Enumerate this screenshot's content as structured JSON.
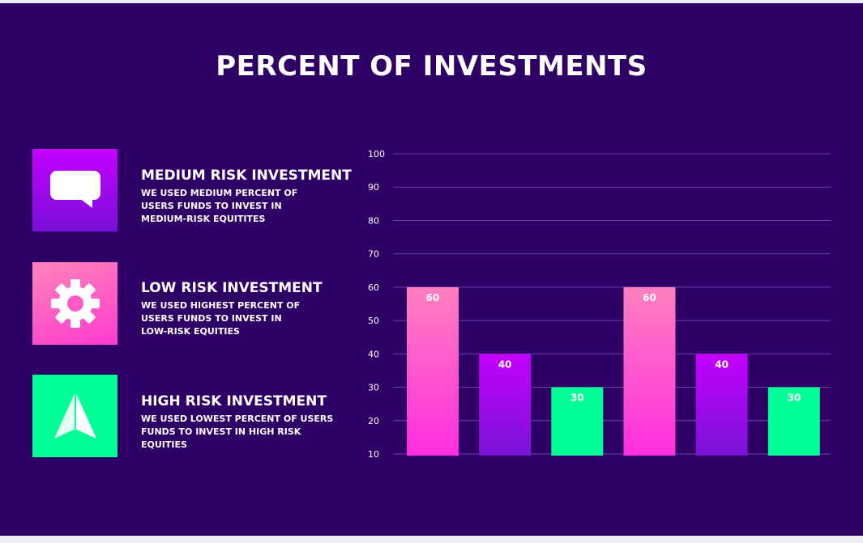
{
  "title": "PERCENT OF INVESTMENTS",
  "legend": [
    {
      "title": "MEDIUM RISK INVESTMENT",
      "lines": [
        "WE USED MEDIUM PERCENT OF",
        "USERS FUNDS TO INVEST IN",
        "MEDIUM-RISK EQUITITES"
      ],
      "icon": "speech-bubble-icon",
      "color": "#c300ff"
    },
    {
      "title": "LOW RISK INVESTMENT",
      "lines": [
        "WE USED HIGHEST PERCENT OF",
        "USERS FUNDS TO INVEST IN",
        "LOW-RISK EQUITIES"
      ],
      "icon": "gear-icon",
      "color": "#ff4fc8"
    },
    {
      "title": "HIGH RISK INVESTMENT",
      "lines": [
        "WE USED LOWEST PERCENT OF USERS",
        "FUNDS TO INVEST IN HIGH RISK",
        "EQUITIES"
      ],
      "icon": "paper-plane-icon",
      "color": "#00ff96"
    }
  ],
  "chart_data": {
    "type": "bar",
    "title": "PERCENT OF INVESTMENTS",
    "xlabel": "",
    "ylabel": "",
    "ylim": [
      10,
      100
    ],
    "yticks": [
      10,
      20,
      30,
      40,
      50,
      60,
      70,
      80,
      90,
      100
    ],
    "categories": [
      "",
      "",
      "",
      "",
      "",
      ""
    ],
    "values": [
      60,
      40,
      30,
      60,
      40,
      30
    ],
    "data_labels": [
      "60",
      "40",
      "30",
      "60",
      "40",
      "30"
    ],
    "bar_colors": [
      "#ff3ad0",
      "#b400f0",
      "#00ff96",
      "#ff3ad0",
      "#b400f0",
      "#00ff96"
    ],
    "grid": true,
    "legend": "left"
  }
}
